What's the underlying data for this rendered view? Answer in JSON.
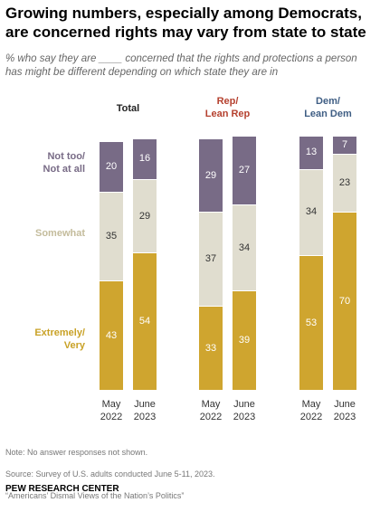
{
  "chart_data": {
    "type": "bar",
    "stacked": true,
    "title": "Growing numbers, especially among Democrats,\nare concerned rights may vary from state to state",
    "subtitle": "% who say they are ____ concerned that the rights and protections a person\nhas might be different depending on which state they are in",
    "ylim": [
      0,
      100
    ],
    "panels": [
      {
        "title": "Total",
        "color": "#222222",
        "categories": [
          "May\n2022",
          "June\n2023"
        ]
      },
      {
        "title": "Rep/\nLean Rep",
        "color": "#b5412f",
        "categories": [
          "May\n2022",
          "June\n2023"
        ]
      },
      {
        "title": "Dem/\nLean Dem",
        "color": "#3f5e84",
        "categories": [
          "May\n2022",
          "June\n2023"
        ]
      }
    ],
    "series": [
      {
        "name": "Extremely/\nVery",
        "color": "#cfa52f",
        "label_color": "#c9a227",
        "value_color": "#ffffff",
        "values": [
          43,
          54,
          33,
          39,
          53,
          70
        ]
      },
      {
        "name": "Somewhat",
        "color": "#e0ddcf",
        "label_color": "#c4bc9c",
        "value_color": "#333333",
        "values": [
          35,
          29,
          37,
          34,
          34,
          23
        ]
      },
      {
        "name": "Not too/\nNot at all",
        "color": "#786b86",
        "label_color": "#786b86",
        "value_color": "#ffffff",
        "values": [
          20,
          16,
          29,
          27,
          13,
          7
        ]
      }
    ],
    "notes": [
      "Note: No answer responses not shown.",
      "Source: Survey of U.S. adults conducted June 5-11, 2023.",
      "“Americans’ Dismal Views of the Nation’s Politics”"
    ],
    "footer": "PEW RESEARCH CENTER"
  }
}
